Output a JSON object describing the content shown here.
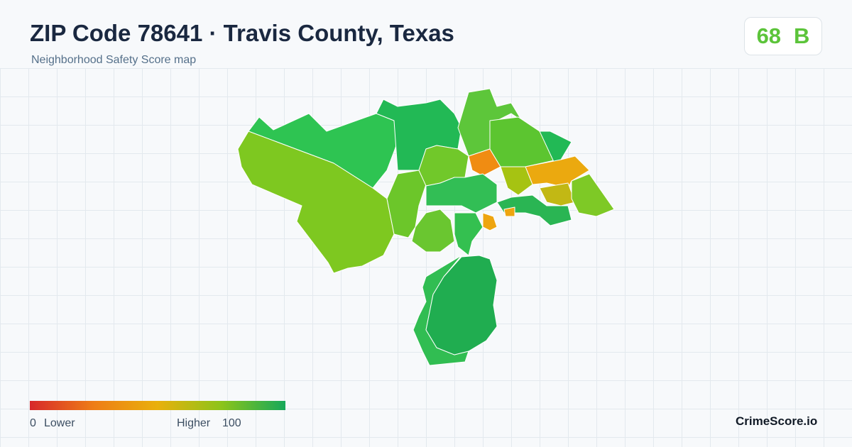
{
  "header": {
    "title": "ZIP Code 78641 · Travis County, Texas",
    "subtitle": "Neighborhood Safety Score map",
    "score": 68,
    "grade": "B"
  },
  "legend": {
    "min": 0,
    "min_label": "Lower",
    "max_label": "Higher",
    "max": 100
  },
  "footer": {
    "brand": "CrimeScore.io"
  }
}
